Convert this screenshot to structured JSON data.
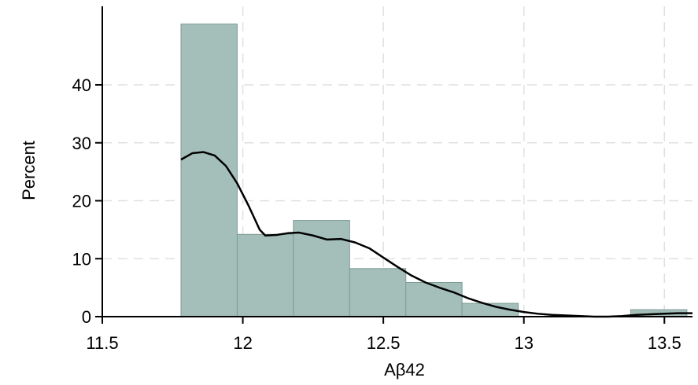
{
  "chart_data": {
    "type": "bar",
    "subtype": "histogram-with-density",
    "title": "",
    "xlabel": "Aβ42",
    "ylabel": "Percent",
    "xlim": [
      11.5,
      13.6
    ],
    "ylim": [
      0,
      50
    ],
    "x_ticks": [
      11.5,
      12,
      12.5,
      13,
      13.5
    ],
    "x_tick_labels": [
      "11.5",
      "12",
      "12.5",
      "13",
      "13.5"
    ],
    "y_ticks": [
      0,
      10,
      20,
      30,
      40
    ],
    "y_tick_labels": [
      "0",
      "10",
      "20",
      "30",
      "40"
    ],
    "grid": true,
    "colors": {
      "bar_fill": "#a4bfb9",
      "bar_edge": "#7e9a94",
      "line": "#000000",
      "grid": "#e0e0e0"
    },
    "bins": [
      {
        "start": 11.78,
        "end": 11.98,
        "percent": 51.0
      },
      {
        "start": 11.98,
        "end": 12.18,
        "percent": 14.2
      },
      {
        "start": 12.18,
        "end": 12.38,
        "percent": 16.6
      },
      {
        "start": 12.38,
        "end": 12.58,
        "percent": 8.3
      },
      {
        "start": 12.58,
        "end": 12.78,
        "percent": 5.9
      },
      {
        "start": 12.78,
        "end": 12.98,
        "percent": 2.3
      },
      {
        "start": 13.38,
        "end": 13.58,
        "percent": 1.2
      }
    ],
    "density_curve": {
      "x": [
        11.78,
        11.82,
        11.86,
        11.9,
        11.94,
        11.98,
        12.02,
        12.06,
        12.08,
        12.12,
        12.16,
        12.2,
        12.25,
        12.3,
        12.35,
        12.4,
        12.45,
        12.5,
        12.55,
        12.6,
        12.65,
        12.7,
        12.75,
        12.8,
        12.85,
        12.9,
        12.95,
        13.0,
        13.05,
        13.1,
        13.15,
        13.2,
        13.25,
        13.3,
        13.35,
        13.4,
        13.45,
        13.5,
        13.55,
        13.6
      ],
      "y": [
        27.1,
        28.2,
        28.4,
        27.8,
        26.0,
        23.0,
        19.2,
        15.0,
        14.0,
        14.1,
        14.4,
        14.5,
        14.0,
        13.3,
        13.4,
        12.8,
        11.8,
        10.2,
        8.6,
        7.1,
        5.9,
        5.0,
        4.2,
        3.2,
        2.4,
        1.7,
        1.2,
        0.8,
        0.5,
        0.3,
        0.2,
        0.1,
        0.0,
        0.0,
        0.1,
        0.3,
        0.4,
        0.5,
        0.6,
        0.6
      ]
    }
  }
}
